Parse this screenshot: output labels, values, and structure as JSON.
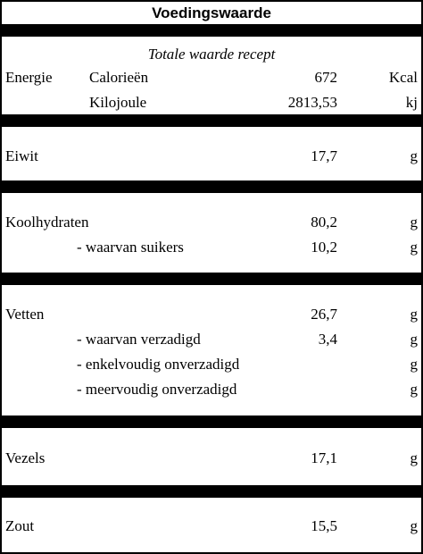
{
  "header": {
    "title": "Voedingswaarde"
  },
  "subtitle": "Totale waarde recept",
  "energy": {
    "label": "Energie",
    "rows": [
      {
        "name": "Calorieën",
        "value": "672",
        "unit": "Kcal"
      },
      {
        "name": "Kilojoule",
        "value": "2813,53",
        "unit": "kj"
      }
    ]
  },
  "sections": [
    {
      "name": "Eiwit",
      "value": "17,7",
      "unit": "g"
    },
    {
      "name": "Koolhydraten",
      "value": "80,2",
      "unit": "g",
      "sub": [
        {
          "name": "- waarvan suikers",
          "value": "10,2",
          "unit": "g"
        }
      ]
    },
    {
      "name": "Vetten",
      "value": "26,7",
      "unit": "g",
      "sub": [
        {
          "name": "- waarvan verzadigd",
          "value": "3,4",
          "unit": "g"
        },
        {
          "name": "- enkelvoudig onverzadigd",
          "unit": "g"
        },
        {
          "name": "- meervoudig onverzadigd",
          "unit": "g"
        }
      ]
    },
    {
      "name": "Vezels",
      "value": "17,1",
      "unit": "g"
    },
    {
      "name": "Zout",
      "value": "15,5",
      "unit": "g"
    }
  ]
}
